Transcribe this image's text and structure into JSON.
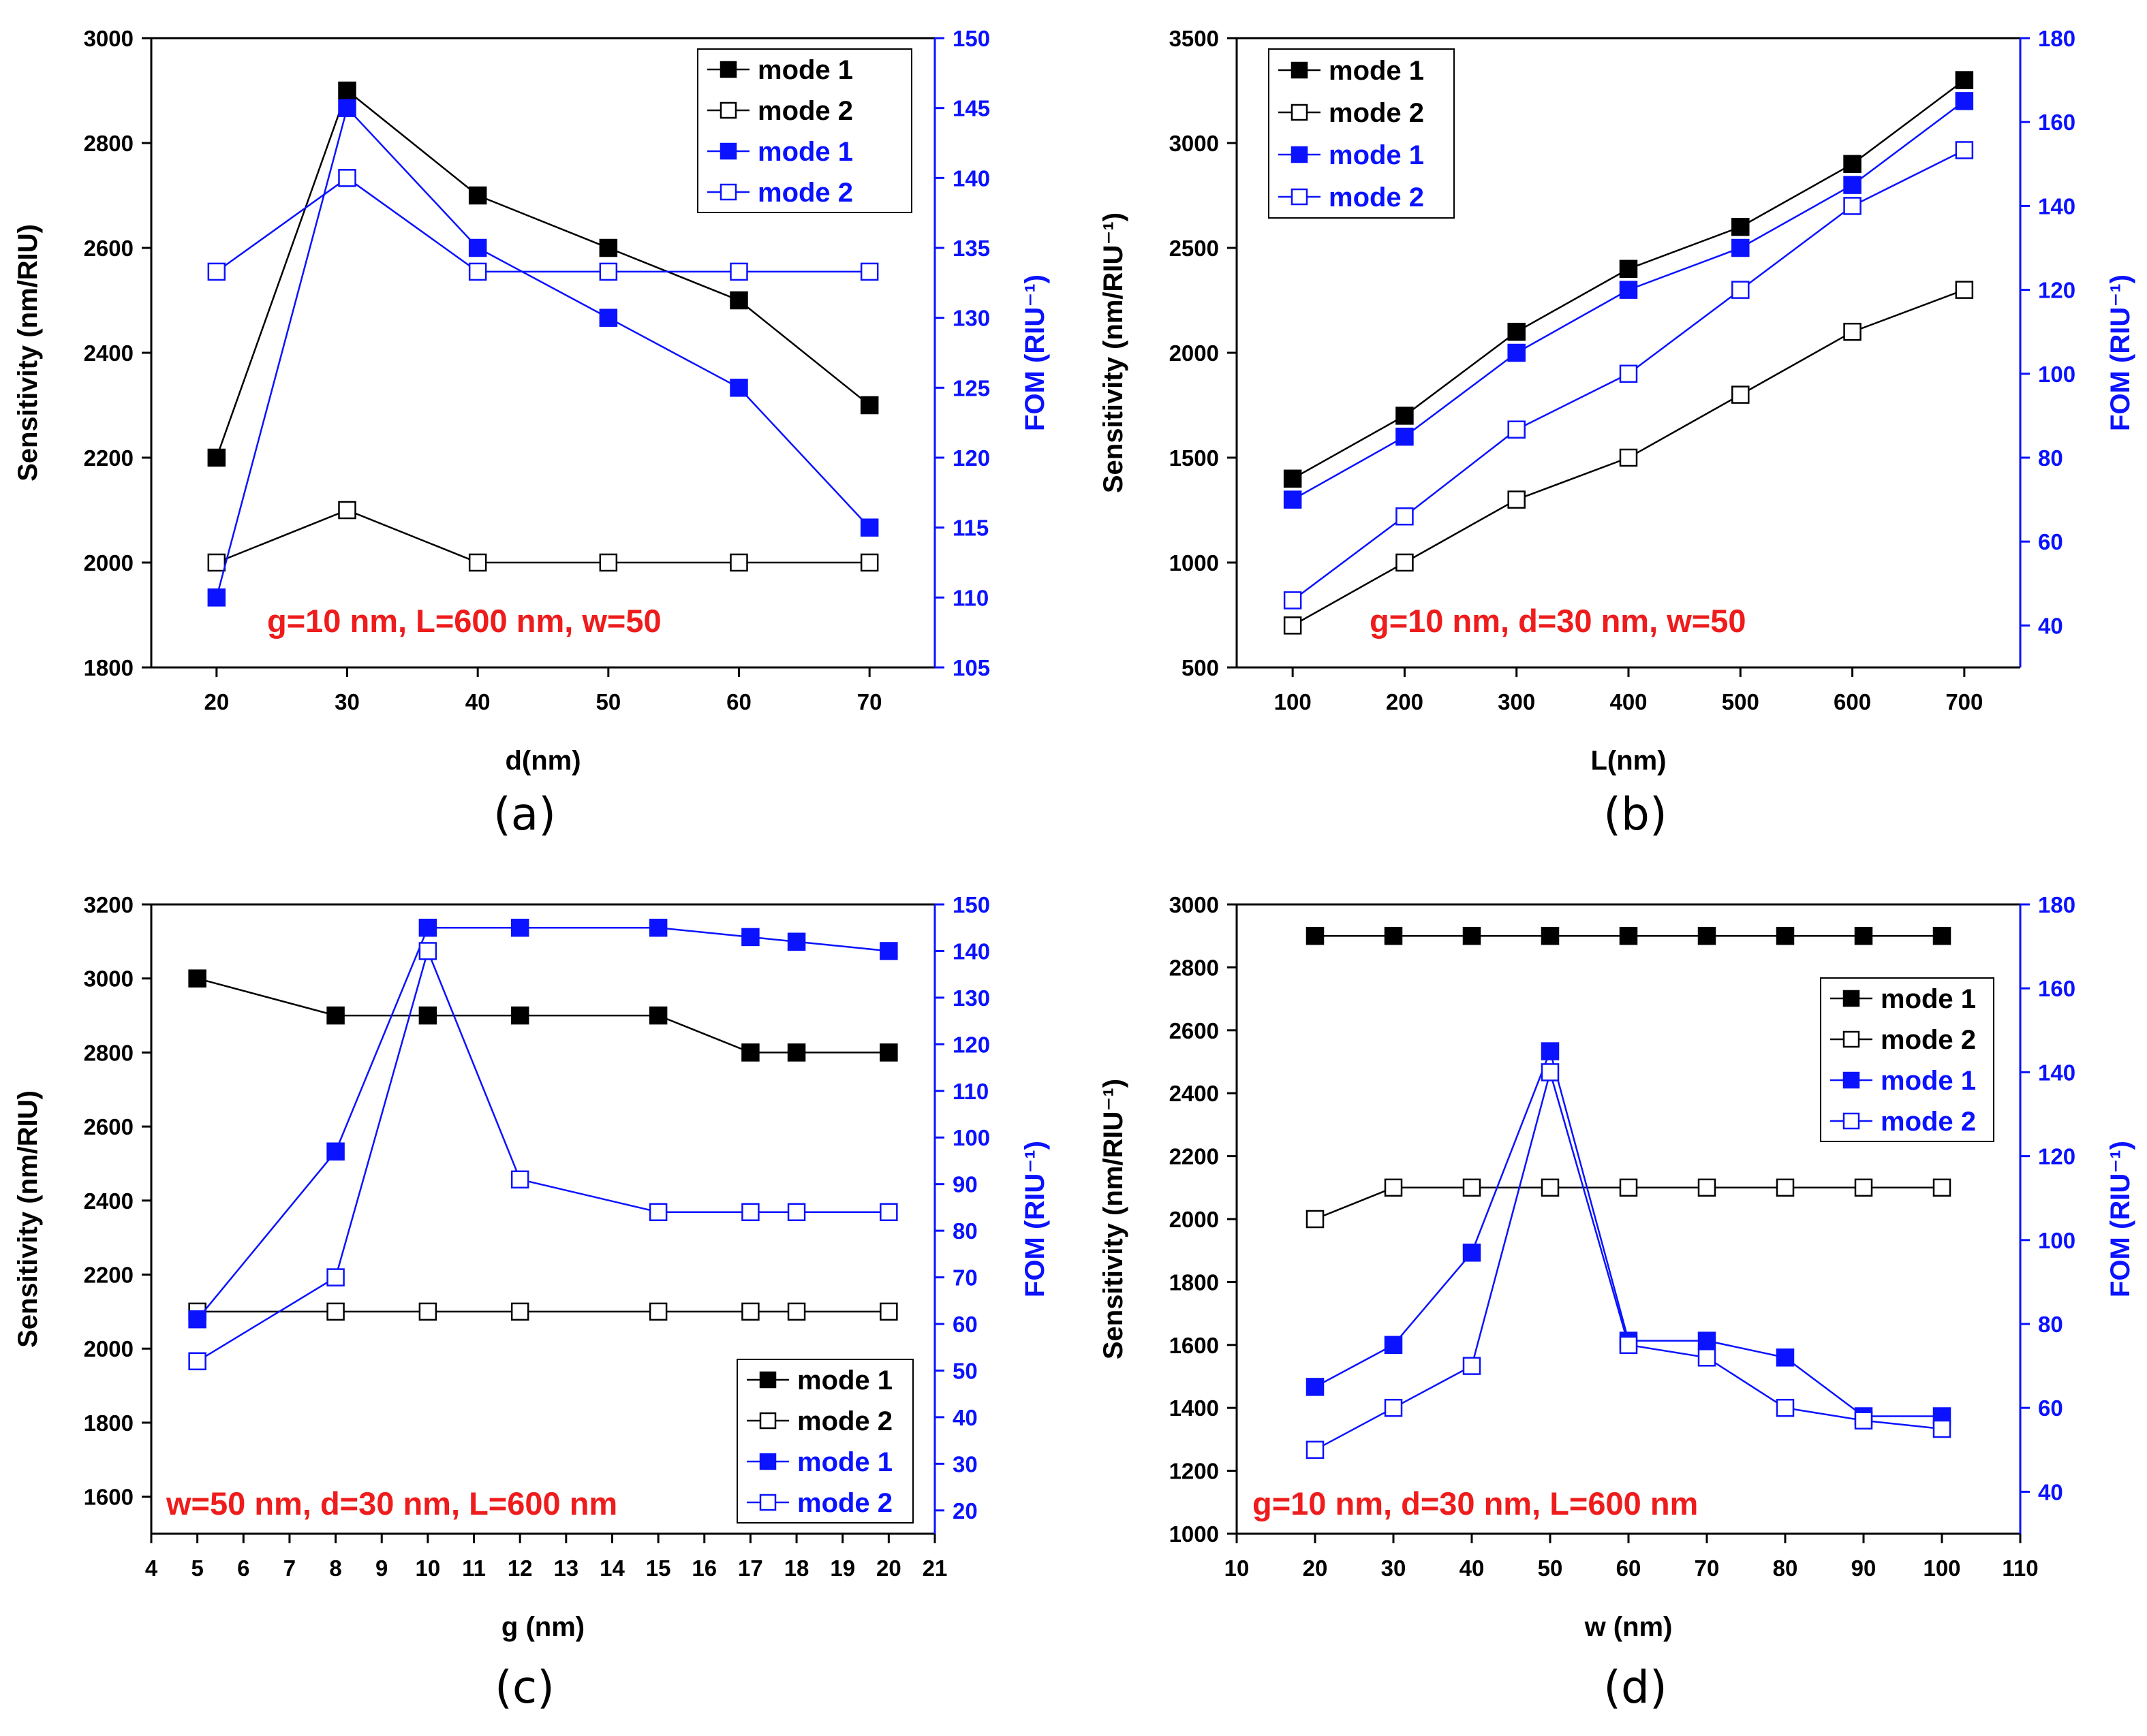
{
  "figure": {
    "colors": {
      "black": "#000000",
      "blue": "#0a12ff",
      "annotation": "#ee1c1c"
    }
  },
  "chart_data": [
    {
      "type": "line",
      "panel_label": "(a)",
      "xlabel": "d(nm)",
      "ylabel_left": "Sensitivity (nm/RIU)",
      "ylabel_right": "FOM (RIU⁻¹)",
      "xlim": [
        15,
        75
      ],
      "ylim_left": [
        1800,
        3000
      ],
      "ylim_right": [
        105,
        150
      ],
      "x_ticks": [
        20,
        30,
        40,
        50,
        60,
        70
      ],
      "y_left_ticks": [
        1800,
        2000,
        2200,
        2400,
        2600,
        2800,
        3000
      ],
      "y_right_ticks": [
        105,
        110,
        115,
        120,
        125,
        130,
        135,
        140,
        145,
        150
      ],
      "annotation": "g=10 nm, L=600 nm, w=50",
      "legend": {
        "position": "top-right",
        "entries": [
          "mode 1",
          "mode 2",
          "mode 1",
          "mode 2"
        ]
      },
      "series": [
        {
          "name": "mode 1",
          "axis": "left",
          "color": "black",
          "filled": true,
          "x": [
            20,
            30,
            40,
            50,
            60,
            70
          ],
          "y": [
            2200,
            2900,
            2700,
            2600,
            2500,
            2300
          ]
        },
        {
          "name": "mode 2",
          "axis": "left",
          "color": "black",
          "filled": false,
          "x": [
            20,
            30,
            40,
            50,
            60,
            70
          ],
          "y": [
            2000,
            2100,
            2000,
            2000,
            2000,
            2000
          ]
        },
        {
          "name": "mode 1",
          "axis": "right",
          "color": "blue",
          "filled": true,
          "x": [
            20,
            30,
            40,
            50,
            60,
            70
          ],
          "y": [
            110,
            145,
            135,
            130,
            125,
            115
          ]
        },
        {
          "name": "mode 2",
          "axis": "right",
          "color": "blue",
          "filled": false,
          "x": [
            20,
            30,
            40,
            50,
            60,
            70
          ],
          "y": [
            133.3,
            140,
            133.3,
            133.3,
            133.3,
            133.3
          ]
        }
      ]
    },
    {
      "type": "line",
      "panel_label": "(b)",
      "xlabel": "L(nm)",
      "ylabel_left": "Sensitivity (nm/RIU⁻¹)",
      "ylabel_right": "FOM (RIU⁻¹)",
      "xlim": [
        50,
        750
      ],
      "ylim_left": [
        500,
        3500
      ],
      "ylim_right": [
        30,
        180
      ],
      "x_ticks": [
        100,
        200,
        300,
        400,
        500,
        600,
        700
      ],
      "y_left_ticks": [
        500,
        1000,
        1500,
        2000,
        2500,
        3000,
        3500
      ],
      "y_right_ticks": [
        40,
        60,
        80,
        100,
        120,
        140,
        160,
        180
      ],
      "annotation": "g=10 nm, d=30 nm, w=50",
      "legend": {
        "position": "top-left",
        "entries": [
          "mode 1",
          "mode 2",
          "mode 1",
          "mode 2"
        ]
      },
      "series": [
        {
          "name": "mode 1",
          "axis": "left",
          "color": "black",
          "filled": true,
          "x": [
            100,
            200,
            300,
            400,
            500,
            600,
            700
          ],
          "y": [
            1400,
            1700,
            2100,
            2400,
            2600,
            2900,
            3300
          ]
        },
        {
          "name": "mode 2",
          "axis": "left",
          "color": "black",
          "filled": false,
          "x": [
            100,
            200,
            300,
            400,
            500,
            600,
            700
          ],
          "y": [
            700,
            1000,
            1300,
            1500,
            1800,
            2100,
            2300
          ]
        },
        {
          "name": "mode 1",
          "axis": "right",
          "color": "blue",
          "filled": true,
          "x": [
            100,
            200,
            300,
            400,
            500,
            600,
            700
          ],
          "y": [
            70,
            85,
            105,
            120,
            130,
            145,
            165
          ]
        },
        {
          "name": "mode 2",
          "axis": "right",
          "color": "blue",
          "filled": false,
          "x": [
            100,
            200,
            300,
            400,
            500,
            600,
            700
          ],
          "y": [
            46,
            66,
            86.7,
            100,
            120,
            140,
            153.3
          ]
        }
      ]
    },
    {
      "type": "line",
      "panel_label": "(c)",
      "xlabel": "g (nm)",
      "ylabel_left": "Sensitivity (nm/RIU)",
      "ylabel_right": "FOM (RIU⁻¹)",
      "xlim": [
        4,
        21
      ],
      "ylim_left": [
        1500,
        3200
      ],
      "ylim_right": [
        15,
        150
      ],
      "x_ticks": [
        4,
        5,
        6,
        7,
        8,
        9,
        10,
        11,
        12,
        13,
        14,
        15,
        16,
        17,
        18,
        19,
        20,
        21
      ],
      "y_left_ticks": [
        1600,
        1800,
        2000,
        2200,
        2400,
        2600,
        2800,
        3000,
        3200
      ],
      "y_right_ticks": [
        20,
        30,
        40,
        50,
        60,
        70,
        80,
        90,
        100,
        110,
        120,
        130,
        140,
        150
      ],
      "annotation": "w=50 nm, d=30 nm, L=600 nm",
      "legend": {
        "position": "bottom-right",
        "entries": [
          "mode 1",
          "mode 2",
          "mode 1",
          "mode 2"
        ]
      },
      "series": [
        {
          "name": "mode 1",
          "axis": "left",
          "color": "black",
          "filled": true,
          "x": [
            5,
            8,
            10,
            12,
            15,
            17,
            18,
            20
          ],
          "y": [
            3000,
            2900,
            2900,
            2900,
            2900,
            2800,
            2800,
            2800
          ]
        },
        {
          "name": "mode 2",
          "axis": "left",
          "color": "black",
          "filled": false,
          "x": [
            5,
            8,
            10,
            12,
            15,
            17,
            18,
            20
          ],
          "y": [
            2100,
            2100,
            2100,
            2100,
            2100,
            2100,
            2100,
            2100
          ]
        },
        {
          "name": "mode 1",
          "axis": "right",
          "color": "blue",
          "filled": true,
          "x": [
            5,
            8,
            10,
            12,
            15,
            17,
            18,
            20
          ],
          "y": [
            61,
            97,
            145,
            145,
            145,
            143,
            142,
            140
          ]
        },
        {
          "name": "mode 2",
          "axis": "right",
          "color": "blue",
          "filled": false,
          "x": [
            5,
            8,
            10,
            12,
            15,
            17,
            18,
            20
          ],
          "y": [
            52,
            70,
            140,
            91,
            84,
            84,
            84,
            84
          ]
        }
      ]
    },
    {
      "type": "line",
      "panel_label": "(d)",
      "xlabel": "w (nm)",
      "ylabel_left": "Sensitivity (nm/RIU⁻¹)",
      "ylabel_right": "FOM (RIU⁻¹)",
      "xlim": [
        10,
        110
      ],
      "ylim_left": [
        1000,
        3000
      ],
      "ylim_right": [
        30,
        180
      ],
      "x_ticks": [
        10,
        20,
        30,
        40,
        50,
        60,
        70,
        80,
        90,
        100,
        110
      ],
      "y_left_ticks": [
        1000,
        1200,
        1400,
        1600,
        1800,
        2000,
        2200,
        2400,
        2600,
        2800,
        3000
      ],
      "y_right_ticks": [
        40,
        60,
        80,
        100,
        120,
        140,
        160,
        180
      ],
      "annotation": "g=10 nm, d=30 nm, L=600 nm",
      "legend": {
        "position": "right",
        "entries": [
          "mode 1",
          "mode 2",
          "mode 1",
          "mode 2"
        ]
      },
      "series": [
        {
          "name": "mode 1",
          "axis": "left",
          "color": "black",
          "filled": true,
          "x": [
            20,
            30,
            40,
            50,
            60,
            70,
            80,
            90,
            100
          ],
          "y": [
            2900,
            2900,
            2900,
            2900,
            2900,
            2900,
            2900,
            2900,
            2900
          ]
        },
        {
          "name": "mode 2",
          "axis": "left",
          "color": "black",
          "filled": false,
          "x": [
            20,
            30,
            40,
            50,
            60,
            70,
            80,
            90,
            100
          ],
          "y": [
            2000,
            2100,
            2100,
            2100,
            2100,
            2100,
            2100,
            2100,
            2100
          ]
        },
        {
          "name": "mode 1",
          "axis": "right",
          "color": "blue",
          "filled": true,
          "x": [
            20,
            30,
            40,
            50,
            60,
            70,
            80,
            90,
            100
          ],
          "y": [
            65,
            75,
            97,
            145,
            76,
            76,
            72,
            58,
            58
          ]
        },
        {
          "name": "mode 2",
          "axis": "right",
          "color": "blue",
          "filled": false,
          "x": [
            20,
            30,
            40,
            50,
            60,
            70,
            80,
            90,
            100
          ],
          "y": [
            50,
            60,
            70,
            140,
            75,
            72,
            60,
            57,
            55
          ]
        }
      ]
    }
  ]
}
